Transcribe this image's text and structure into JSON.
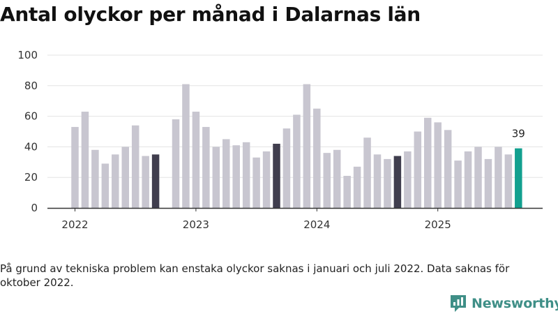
{
  "title": "Antal olyckor per månad i Dalarnas län",
  "note": "På grund av tekniska problem kan enstaka olyckor saknas i januari och juli 2022. Data saknas för oktober 2022.",
  "brand": {
    "name": "Newsworthy",
    "color": "#3f8f87"
  },
  "colors": {
    "bar": "#c8c6d0",
    "september": "#403e4e",
    "latest": "#12a08f",
    "grid": "#e3e3e3",
    "axis": "#333333"
  },
  "chart_data": {
    "type": "bar",
    "title": "Antal olyckor per månad i Dalarnas län",
    "xlabel": "",
    "ylabel": "",
    "ylim": [
      0,
      100
    ],
    "yticks": [
      0,
      20,
      40,
      60,
      80,
      100
    ],
    "year_labels": [
      "2022",
      "2023",
      "2024",
      "2025"
    ],
    "series": [
      {
        "name": "Antal olyckor",
        "points": [
          {
            "year": 2022,
            "month": 1,
            "value": 53
          },
          {
            "year": 2022,
            "month": 2,
            "value": 63
          },
          {
            "year": 2022,
            "month": 3,
            "value": 38
          },
          {
            "year": 2022,
            "month": 4,
            "value": 29
          },
          {
            "year": 2022,
            "month": 5,
            "value": 35
          },
          {
            "year": 2022,
            "month": 6,
            "value": 40
          },
          {
            "year": 2022,
            "month": 7,
            "value": 54
          },
          {
            "year": 2022,
            "month": 8,
            "value": 34
          },
          {
            "year": 2022,
            "month": 9,
            "value": 35,
            "highlight": "september"
          },
          {
            "year": 2022,
            "month": 10,
            "value": null
          },
          {
            "year": 2022,
            "month": 11,
            "value": 58
          },
          {
            "year": 2022,
            "month": 12,
            "value": 81
          },
          {
            "year": 2023,
            "month": 1,
            "value": 63
          },
          {
            "year": 2023,
            "month": 2,
            "value": 53
          },
          {
            "year": 2023,
            "month": 3,
            "value": 40
          },
          {
            "year": 2023,
            "month": 4,
            "value": 45
          },
          {
            "year": 2023,
            "month": 5,
            "value": 41
          },
          {
            "year": 2023,
            "month": 6,
            "value": 43
          },
          {
            "year": 2023,
            "month": 7,
            "value": 33
          },
          {
            "year": 2023,
            "month": 8,
            "value": 37
          },
          {
            "year": 2023,
            "month": 9,
            "value": 42,
            "highlight": "september"
          },
          {
            "year": 2023,
            "month": 10,
            "value": 52
          },
          {
            "year": 2023,
            "month": 11,
            "value": 61
          },
          {
            "year": 2023,
            "month": 12,
            "value": 81
          },
          {
            "year": 2024,
            "month": 1,
            "value": 65
          },
          {
            "year": 2024,
            "month": 2,
            "value": 36
          },
          {
            "year": 2024,
            "month": 3,
            "value": 38
          },
          {
            "year": 2024,
            "month": 4,
            "value": 21
          },
          {
            "year": 2024,
            "month": 5,
            "value": 27
          },
          {
            "year": 2024,
            "month": 6,
            "value": 46
          },
          {
            "year": 2024,
            "month": 7,
            "value": 35
          },
          {
            "year": 2024,
            "month": 8,
            "value": 32
          },
          {
            "year": 2024,
            "month": 9,
            "value": 34,
            "highlight": "september"
          },
          {
            "year": 2024,
            "month": 10,
            "value": 37
          },
          {
            "year": 2024,
            "month": 11,
            "value": 50
          },
          {
            "year": 2024,
            "month": 12,
            "value": 59
          },
          {
            "year": 2025,
            "month": 1,
            "value": 56
          },
          {
            "year": 2025,
            "month": 2,
            "value": 51
          },
          {
            "year": 2025,
            "month": 3,
            "value": 31
          },
          {
            "year": 2025,
            "month": 4,
            "value": 37
          },
          {
            "year": 2025,
            "month": 5,
            "value": 40
          },
          {
            "year": 2025,
            "month": 6,
            "value": 32
          },
          {
            "year": 2025,
            "month": 7,
            "value": 40
          },
          {
            "year": 2025,
            "month": 8,
            "value": 35
          },
          {
            "year": 2025,
            "month": 9,
            "value": 39,
            "highlight": "latest",
            "label": "39"
          }
        ]
      }
    ]
  }
}
